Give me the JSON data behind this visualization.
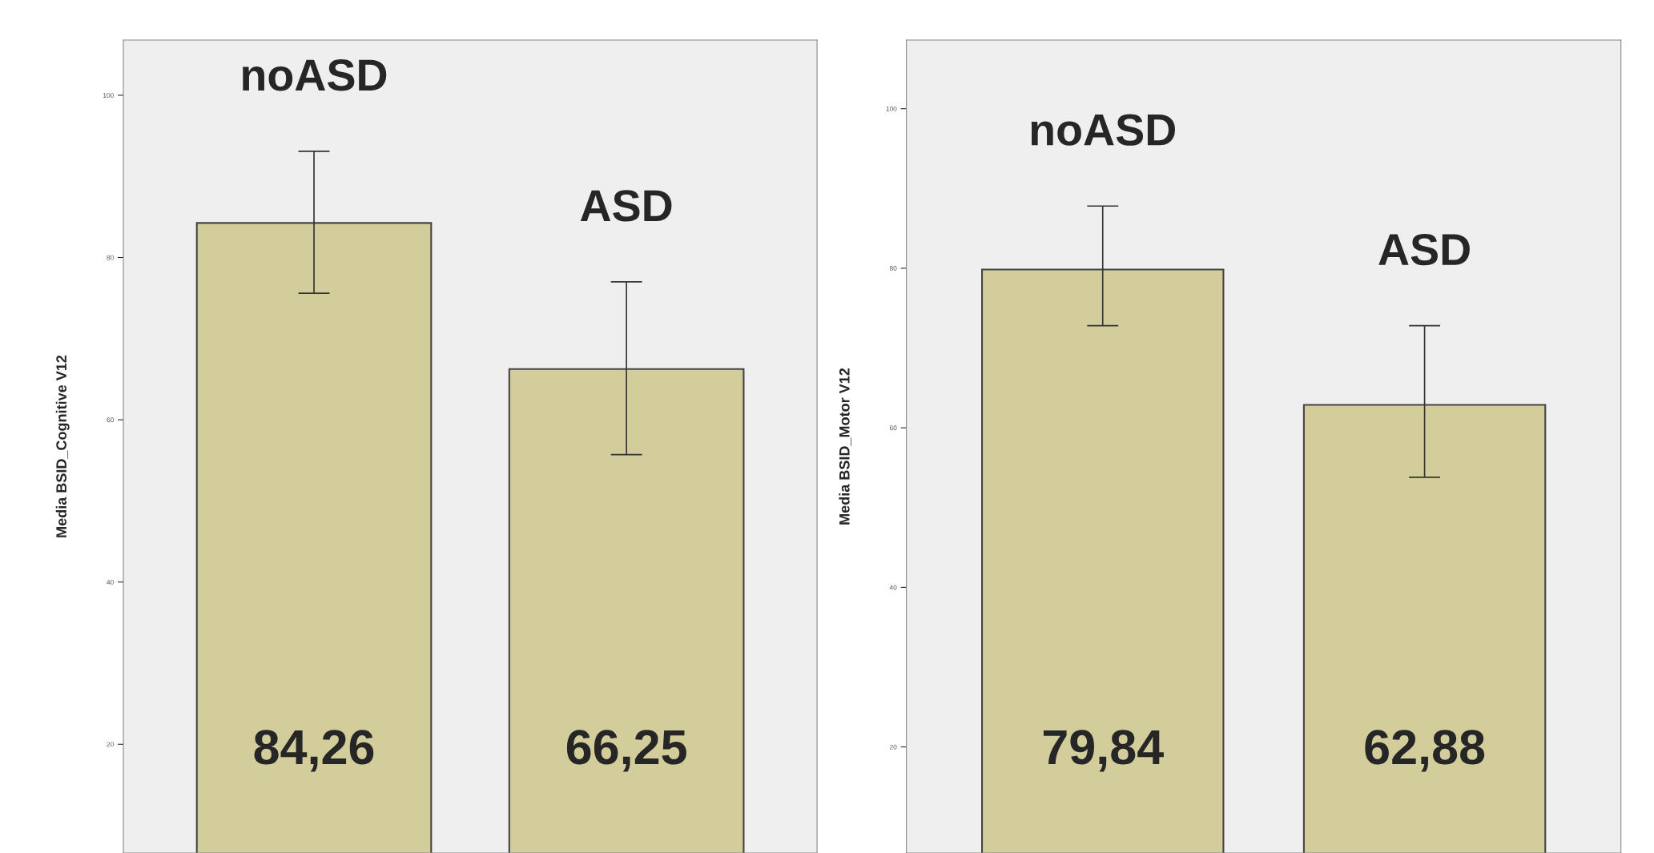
{
  "chart_data": [
    {
      "type": "bar",
      "ylabel": "Media BSID_Cognitive V12",
      "categories": [
        null,
        null
      ],
      "values": [
        84.26,
        66.25
      ],
      "value_labels": [
        "84,26",
        "66,25"
      ],
      "errors": [
        [
          75.6,
          93.1
        ],
        [
          55.7,
          77.0
        ]
      ],
      "color": "#d3cd9c",
      "ylim": [
        6.6,
        106.8
      ],
      "yticks": [
        20,
        40,
        60,
        80,
        100
      ],
      "grid": false,
      "legend": false,
      "annotations": [
        "noASD",
        "ASD"
      ]
    },
    {
      "type": "bar",
      "ylabel": "Media BSID_Motor V12",
      "categories": [
        null,
        null
      ],
      "values": [
        79.84,
        62.88
      ],
      "value_labels": [
        "79,84",
        "62,88"
      ],
      "errors": [
        [
          72.8,
          87.8
        ],
        [
          53.8,
          72.8
        ]
      ],
      "color": "#d3cd9c",
      "ylim": [
        6.7,
        108.6
      ],
      "yticks": [
        20,
        40,
        60,
        80,
        100
      ],
      "grid": false,
      "legend": false,
      "annotations": [
        "noASD",
        "ASD"
      ]
    }
  ]
}
